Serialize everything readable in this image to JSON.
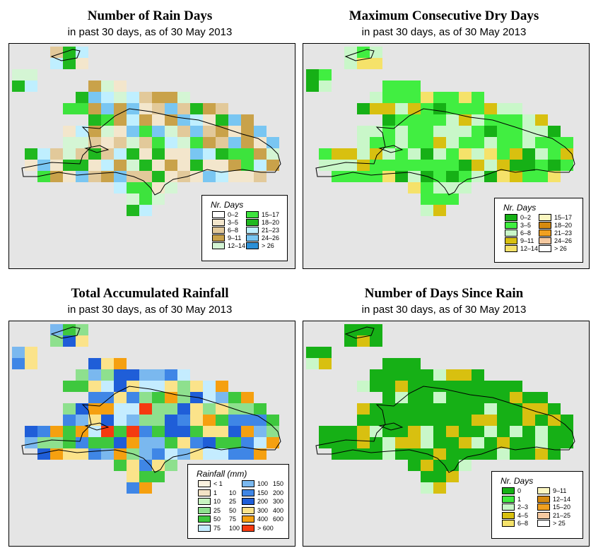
{
  "panels": [
    {
      "title": "Number of Rain Days",
      "subtitle": "in past 30 days, as of  30 May 2013",
      "legend": {
        "title": "Nr. Days",
        "items": [
          {
            "label": "0–2",
            "color": "#ffffff"
          },
          {
            "label": "3–5",
            "color": "#f3e6cc"
          },
          {
            "label": "6–8",
            "color": "#e2c99a"
          },
          {
            "label": "9–11",
            "color": "#c9a24a"
          },
          {
            "label": "12–14",
            "color": "#d4f5d4"
          },
          {
            "label": "15–17",
            "color": "#3de33d"
          },
          {
            "label": "18–20",
            "color": "#1fb81f"
          },
          {
            "label": "21–23",
            "color": "#bfefff"
          },
          {
            "label": "24–26",
            "color": "#79c6f2"
          },
          {
            "label": "> 26",
            "color": "#2b8fd6"
          }
        ]
      }
    },
    {
      "title": "Maximum Consecutive Dry Days",
      "subtitle": "in past 30 days, as of  30 May 2013",
      "legend": {
        "title": "Nr. Days",
        "items": [
          {
            "label": "0–2",
            "color": "#16b016"
          },
          {
            "label": "3–5",
            "color": "#41ee41"
          },
          {
            "label": "6–8",
            "color": "#c9f7c9"
          },
          {
            "label": "9–11",
            "color": "#d8c010"
          },
          {
            "label": "12–14",
            "color": "#f5e26a"
          },
          {
            "label": "15–17",
            "color": "#fbf6c0"
          },
          {
            "label": "18–20",
            "color": "#d68a10"
          },
          {
            "label": "21–23",
            "color": "#f0a020"
          },
          {
            "label": "24–26",
            "color": "#f5c9a0"
          },
          {
            "label": "> 26",
            "color": "#ffffff"
          }
        ]
      }
    },
    {
      "title": "Total Accumulated Rainfall",
      "subtitle": "in past 30 days, as of  30 May 2013",
      "legend": {
        "title": "Rainfall (mm)",
        "items": [
          {
            "label": "< 1",
            "label2": "",
            "color": "#fbf2e0"
          },
          {
            "label": "1",
            "label2": "10",
            "color": "#f3e3c6"
          },
          {
            "label": "10",
            "label2": "25",
            "color": "#c7f2c0"
          },
          {
            "label": "25",
            "label2": "50",
            "color": "#8ee08e"
          },
          {
            "label": "50",
            "label2": "75",
            "color": "#3ec83e"
          },
          {
            "label": "75",
            "label2": "100",
            "color": "#c4ecff"
          },
          {
            "label": "100",
            "label2": "150",
            "color": "#7ab8ef"
          },
          {
            "label": "150",
            "label2": "200",
            "color": "#3f86e6"
          },
          {
            "label": "200",
            "label2": "300",
            "color": "#1f5ed8"
          },
          {
            "label": "300",
            "label2": "400",
            "color": "#fbe38a"
          },
          {
            "label": "400",
            "label2": "600",
            "color": "#f5a010"
          },
          {
            "label": "> 600",
            "label2": "",
            "color": "#f53a10"
          }
        ]
      }
    },
    {
      "title": "Number of Days Since Rain",
      "subtitle": "in past 30 days, as of  30 May 2013",
      "legend": {
        "title": "Nr. Days",
        "items": [
          {
            "label": "0",
            "color": "#16b016"
          },
          {
            "label": "1",
            "color": "#41ee41"
          },
          {
            "label": "2–3",
            "color": "#c9f7c9"
          },
          {
            "label": "4–5",
            "color": "#d8c010"
          },
          {
            "label": "6–8",
            "color": "#f5e26a"
          },
          {
            "label": "9–11",
            "color": "#fbf6c0"
          },
          {
            "label": "12–14",
            "color": "#d68a10"
          },
          {
            "label": "15–20",
            "color": "#f0a020"
          },
          {
            "label": "21–25",
            "color": "#f5c9a0"
          },
          {
            "label": "> 25",
            "color": "#ffffff"
          }
        ]
      }
    }
  ]
}
